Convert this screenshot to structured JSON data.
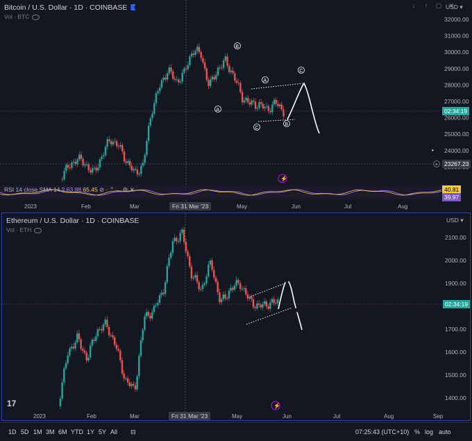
{
  "btc": {
    "title": "Bitcoin / U.S. Dollar · 1D · COINBASE",
    "subtitle": "Vol · BTC",
    "currency": "USD",
    "price_ticks": [
      "32000.00",
      "31000.00",
      "30000.00",
      "29000.00",
      "28000.00",
      "27000.00",
      "26000.00",
      "25000.00",
      "24000.00",
      "23000.00"
    ],
    "countdown_tag": "02:34:19",
    "crosshair_tag": "23267.23",
    "rsi_label": "RSI 14 close SMA 14 2",
    "rsi_value_1": "63.88",
    "rsi_value_2": "65.45",
    "rsi_tag_1": "40.81",
    "rsi_tag_2": "39.97",
    "wave_labels": [
      "B",
      "A",
      "A",
      "C",
      "C",
      "B"
    ],
    "date_labels": [
      "2023",
      "Feb",
      "Mar",
      "May",
      "Jun",
      "Jul",
      "Aug"
    ],
    "date_pill": "Fri 31 Mar '23"
  },
  "eth": {
    "title": "Ethereum / U.S. Dollar · 1D · COINBASE",
    "subtitle": "Vol · ETH",
    "currency": "USD",
    "price_ticks": [
      "2100.00",
      "2000.00",
      "1900.00",
      "1800.00",
      "1700.00",
      "1600.00",
      "1500.00",
      "1400.00"
    ],
    "countdown_tag": "02:34:19",
    "date_labels": [
      "2023",
      "Feb",
      "Mar",
      "May",
      "Jun",
      "Jul",
      "Aug",
      "Sep"
    ],
    "date_pill": "Fri 31 Mar '23"
  },
  "bottom": {
    "ranges": [
      "1D",
      "5D",
      "1M",
      "3M",
      "6M",
      "YTD",
      "1Y",
      "5Y",
      "All"
    ],
    "clock": "07:25:43 (UTC+10)",
    "percent": "%",
    "log": "log",
    "auto": "auto"
  },
  "colors": {
    "up": "#26a69a",
    "down": "#ef5350",
    "bg": "#131722"
  }
}
